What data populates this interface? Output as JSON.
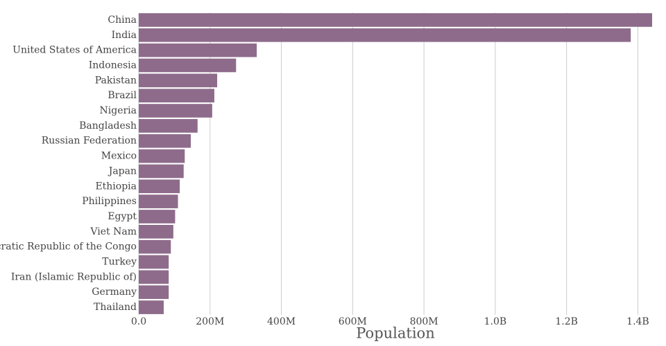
{
  "chart_data": {
    "type": "hbar",
    "x_label": "Population",
    "categories": [
      "China",
      "India",
      "United States of America",
      "Indonesia",
      "Pakistan",
      "Brazil",
      "Nigeria",
      "Bangladesh",
      "Russian Federation",
      "Mexico",
      "Japan",
      "Ethiopia",
      "Philippines",
      "Egypt",
      "Viet Nam",
      "Democratic Republic of the Congo",
      "Turkey",
      "Iran (Islamic Republic of)",
      "Germany",
      "Thailand"
    ],
    "values": [
      1440000000,
      1380000000,
      331000000,
      273000000,
      220000000,
      212000000,
      206000000,
      165000000,
      146000000,
      129000000,
      126000000,
      115000000,
      110000000,
      102000000,
      97000000,
      90000000,
      84000000,
      84000000,
      84000000,
      70000000
    ],
    "color": "#8e6b8b",
    "xlim": [
      0,
      1440000000
    ],
    "xticks": [
      {
        "value": 0,
        "label": "0.0"
      },
      {
        "value": 200000000,
        "label": "200M"
      },
      {
        "value": 400000000,
        "label": "400M"
      },
      {
        "value": 600000000,
        "label": "600M"
      },
      {
        "value": 800000000,
        "label": "800M"
      },
      {
        "value": 1000000000,
        "label": "1.0B"
      },
      {
        "value": 1200000000,
        "label": "1.2B"
      },
      {
        "value": 1400000000,
        "label": "1.4B"
      }
    ],
    "grid": true
  }
}
